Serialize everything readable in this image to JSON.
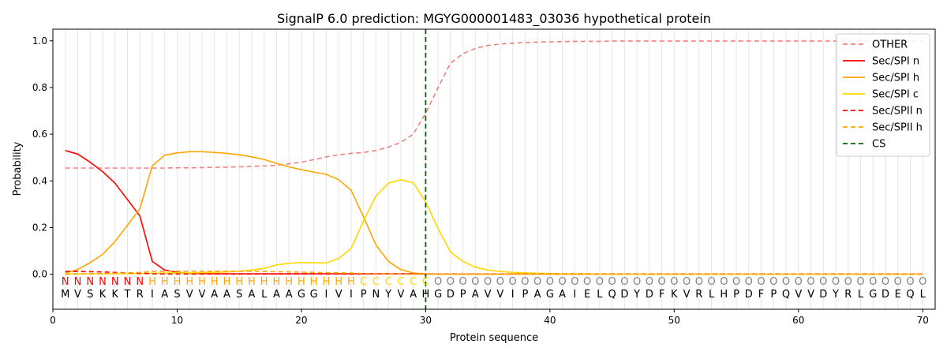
{
  "chart_data": {
    "type": "line",
    "title": "SignalP 6.0 prediction: MGYG000001483_03036 hypothetical protein",
    "xlabel": "Protein sequence",
    "ylabel": "Probability",
    "xlim": [
      0,
      71
    ],
    "ylim": [
      -0.15,
      1.05
    ],
    "x_ticks": [
      0,
      10,
      20,
      30,
      40,
      50,
      60,
      70
    ],
    "y_ticks": [
      0.0,
      0.2,
      0.4,
      0.6,
      0.8,
      1.0
    ],
    "x_tick_labels": [
      "0",
      "10",
      "20",
      "30",
      "40",
      "50",
      "60",
      "70"
    ],
    "y_tick_labels": [
      "0.0",
      "0.2",
      "0.4",
      "0.6",
      "0.8",
      "1.0"
    ],
    "grid": "vertical lines at each residue",
    "legend_position": "top-right",
    "sequence": [
      "M",
      "V",
      "S",
      "K",
      "K",
      "T",
      "R",
      "I",
      "A",
      "S",
      "V",
      "V",
      "A",
      "A",
      "S",
      "A",
      "L",
      "A",
      "A",
      "G",
      "G",
      "I",
      "V",
      "I",
      "P",
      "N",
      "Y",
      "V",
      "A",
      "H",
      "G",
      "D",
      "P",
      "A",
      "V",
      "V",
      "I",
      "P",
      "A",
      "G",
      "A",
      "I",
      "E",
      "L",
      "Q",
      "D",
      "Y",
      "D",
      "F",
      "K",
      "V",
      "R",
      "L",
      "H",
      "P",
      "D",
      "F",
      "P",
      "Q",
      "V",
      "V",
      "D",
      "Y",
      "R",
      "L",
      "G",
      "D",
      "E",
      "Q",
      "L"
    ],
    "region_labels": [
      "N",
      "N",
      "N",
      "N",
      "N",
      "N",
      "N",
      "H",
      "H",
      "H",
      "H",
      "H",
      "H",
      "H",
      "H",
      "H",
      "H",
      "H",
      "H",
      "H",
      "H",
      "H",
      "H",
      "H",
      "C",
      "C",
      "C",
      "C",
      "C",
      "C",
      "O",
      "O",
      "O",
      "O",
      "O",
      "O",
      "O",
      "O",
      "O",
      "O",
      "O",
      "O",
      "O",
      "O",
      "O",
      "O",
      "O",
      "O",
      "O",
      "O",
      "O",
      "O",
      "O",
      "O",
      "O",
      "O",
      "O",
      "O",
      "O",
      "O",
      "O",
      "O",
      "O",
      "O",
      "O",
      "O",
      "O",
      "O",
      "O",
      "O"
    ],
    "region_colors": {
      "N": "#ff0000",
      "H": "#ffa500",
      "C": "#ffd700",
      "O": "#808080"
    },
    "cleavage_site": 30,
    "series": [
      {
        "name": "OTHER",
        "color": "#f08080",
        "dash": "dashed",
        "values": [
          0.455,
          0.455,
          0.455,
          0.455,
          0.455,
          0.455,
          0.455,
          0.455,
          0.455,
          0.456,
          0.456,
          0.457,
          0.458,
          0.459,
          0.46,
          0.462,
          0.464,
          0.467,
          0.473,
          0.48,
          0.491,
          0.503,
          0.512,
          0.518,
          0.522,
          0.53,
          0.545,
          0.565,
          0.6,
          0.69,
          0.8,
          0.905,
          0.945,
          0.968,
          0.98,
          0.986,
          0.99,
          0.993,
          0.995,
          0.996,
          0.997,
          0.998,
          0.998,
          0.998,
          0.999,
          0.999,
          0.999,
          0.999,
          0.999,
          0.999,
          0.999,
          0.999,
          0.999,
          0.999,
          0.999,
          0.999,
          0.999,
          0.999,
          0.999,
          0.999,
          0.999,
          0.999,
          0.999,
          0.999,
          0.999,
          0.999,
          0.999,
          0.999,
          0.999,
          0.999
        ]
      },
      {
        "name": "Sec/SPI n",
        "color": "#ff0000",
        "dash": "solid",
        "values": [
          0.53,
          0.515,
          0.48,
          0.44,
          0.39,
          0.32,
          0.25,
          0.055,
          0.018,
          0.008,
          0.004,
          0.003,
          0.002,
          0.002,
          0.002,
          0.002,
          0.002,
          0.002,
          0.002,
          0.002,
          0.002,
          0.002,
          0.002,
          0.002,
          0.002,
          0.002,
          0.002,
          0.002,
          0.002,
          0.001,
          0.001,
          0.001,
          0.001,
          0.001,
          0.001,
          0.001,
          0.001,
          0.001,
          0.001,
          0.001,
          0.001,
          0.001,
          0.001,
          0.001,
          0.001,
          0.001,
          0.001,
          0.001,
          0.001,
          0.001,
          0.001,
          0.001,
          0.001,
          0.001,
          0.001,
          0.001,
          0.001,
          0.001,
          0.001,
          0.001,
          0.001,
          0.001,
          0.001,
          0.001,
          0.001,
          0.001,
          0.001,
          0.001,
          0.001,
          0.001
        ]
      },
      {
        "name": "Sec/SPI h",
        "color": "#ffa500",
        "dash": "solid",
        "values": [
          0.005,
          0.02,
          0.05,
          0.085,
          0.14,
          0.21,
          0.28,
          0.465,
          0.51,
          0.52,
          0.525,
          0.525,
          0.522,
          0.518,
          0.512,
          0.503,
          0.492,
          0.475,
          0.46,
          0.448,
          0.438,
          0.428,
          0.405,
          0.36,
          0.245,
          0.125,
          0.055,
          0.02,
          0.005,
          0.002,
          0.001,
          0.001,
          0.001,
          0.001,
          0.001,
          0.001,
          0.001,
          0.001,
          0.001,
          0.001,
          0.001,
          0.001,
          0.001,
          0.001,
          0.001,
          0.001,
          0.001,
          0.001,
          0.001,
          0.001,
          0.001,
          0.001,
          0.001,
          0.001,
          0.001,
          0.001,
          0.001,
          0.001,
          0.001,
          0.001,
          0.001,
          0.001,
          0.001,
          0.001,
          0.001,
          0.001,
          0.001,
          0.001,
          0.001,
          0.001
        ]
      },
      {
        "name": "Sec/SPI c",
        "color": "#ffd700",
        "dash": "solid",
        "values": [
          0.002,
          0.002,
          0.002,
          0.002,
          0.002,
          0.002,
          0.003,
          0.004,
          0.005,
          0.006,
          0.006,
          0.007,
          0.008,
          0.01,
          0.013,
          0.018,
          0.025,
          0.04,
          0.047,
          0.05,
          0.049,
          0.048,
          0.068,
          0.11,
          0.23,
          0.335,
          0.39,
          0.405,
          0.392,
          0.31,
          0.195,
          0.095,
          0.055,
          0.03,
          0.018,
          0.012,
          0.008,
          0.006,
          0.004,
          0.003,
          0.002,
          0.002,
          0.002,
          0.001,
          0.001,
          0.001,
          0.001,
          0.001,
          0.001,
          0.001,
          0.001,
          0.001,
          0.001,
          0.001,
          0.001,
          0.001,
          0.001,
          0.001,
          0.001,
          0.001,
          0.001,
          0.001,
          0.001,
          0.001,
          0.001,
          0.001,
          0.001,
          0.001,
          0.001,
          0.001
        ]
      },
      {
        "name": "Sec/SPII n",
        "color": "#ff0000",
        "dash": "dashed",
        "values": [
          0.012,
          0.012,
          0.011,
          0.01,
          0.008,
          0.006,
          0.004,
          0.002,
          0.001,
          0.001,
          0.001,
          0.001,
          0.001,
          0.001,
          0.001,
          0.001,
          0.001,
          0.001,
          0.001,
          0.001,
          0.001,
          0.001,
          0.001,
          0.001,
          0.001,
          0.001,
          0.001,
          0.001,
          0.001,
          0.001,
          0.001,
          0.001,
          0.001,
          0.001,
          0.001,
          0.001,
          0.001,
          0.001,
          0.001,
          0.001,
          0.001,
          0.001,
          0.001,
          0.001,
          0.001,
          0.001,
          0.001,
          0.001,
          0.001,
          0.001,
          0.001,
          0.001,
          0.001,
          0.001,
          0.001,
          0.001,
          0.001,
          0.001,
          0.001,
          0.001,
          0.001,
          0.001,
          0.001,
          0.001,
          0.001,
          0.001,
          0.001,
          0.001,
          0.001,
          0.001
        ]
      },
      {
        "name": "Sec/SPII h",
        "color": "#ffa500",
        "dash": "dashed",
        "values": [
          0.0,
          0.001,
          0.002,
          0.003,
          0.004,
          0.006,
          0.008,
          0.012,
          0.013,
          0.013,
          0.013,
          0.013,
          0.013,
          0.013,
          0.013,
          0.013,
          0.012,
          0.011,
          0.01,
          0.009,
          0.008,
          0.007,
          0.006,
          0.005,
          0.003,
          0.002,
          0.001,
          0.001,
          0.0,
          0.0,
          0.0,
          0.0,
          0.0,
          0.0,
          0.0,
          0.0,
          0.0,
          0.0,
          0.0,
          0.0,
          0.0,
          0.0,
          0.0,
          0.0,
          0.0,
          0.0,
          0.0,
          0.0,
          0.0,
          0.0,
          0.0,
          0.0,
          0.0,
          0.0,
          0.0,
          0.0,
          0.0,
          0.0,
          0.0,
          0.0,
          0.0,
          0.0,
          0.0,
          0.0,
          0.0,
          0.0,
          0.0,
          0.0,
          0.0,
          0.0
        ]
      }
    ],
    "cs_legend": {
      "name": "CS",
      "color": "#006400",
      "dash": "dashed"
    }
  }
}
